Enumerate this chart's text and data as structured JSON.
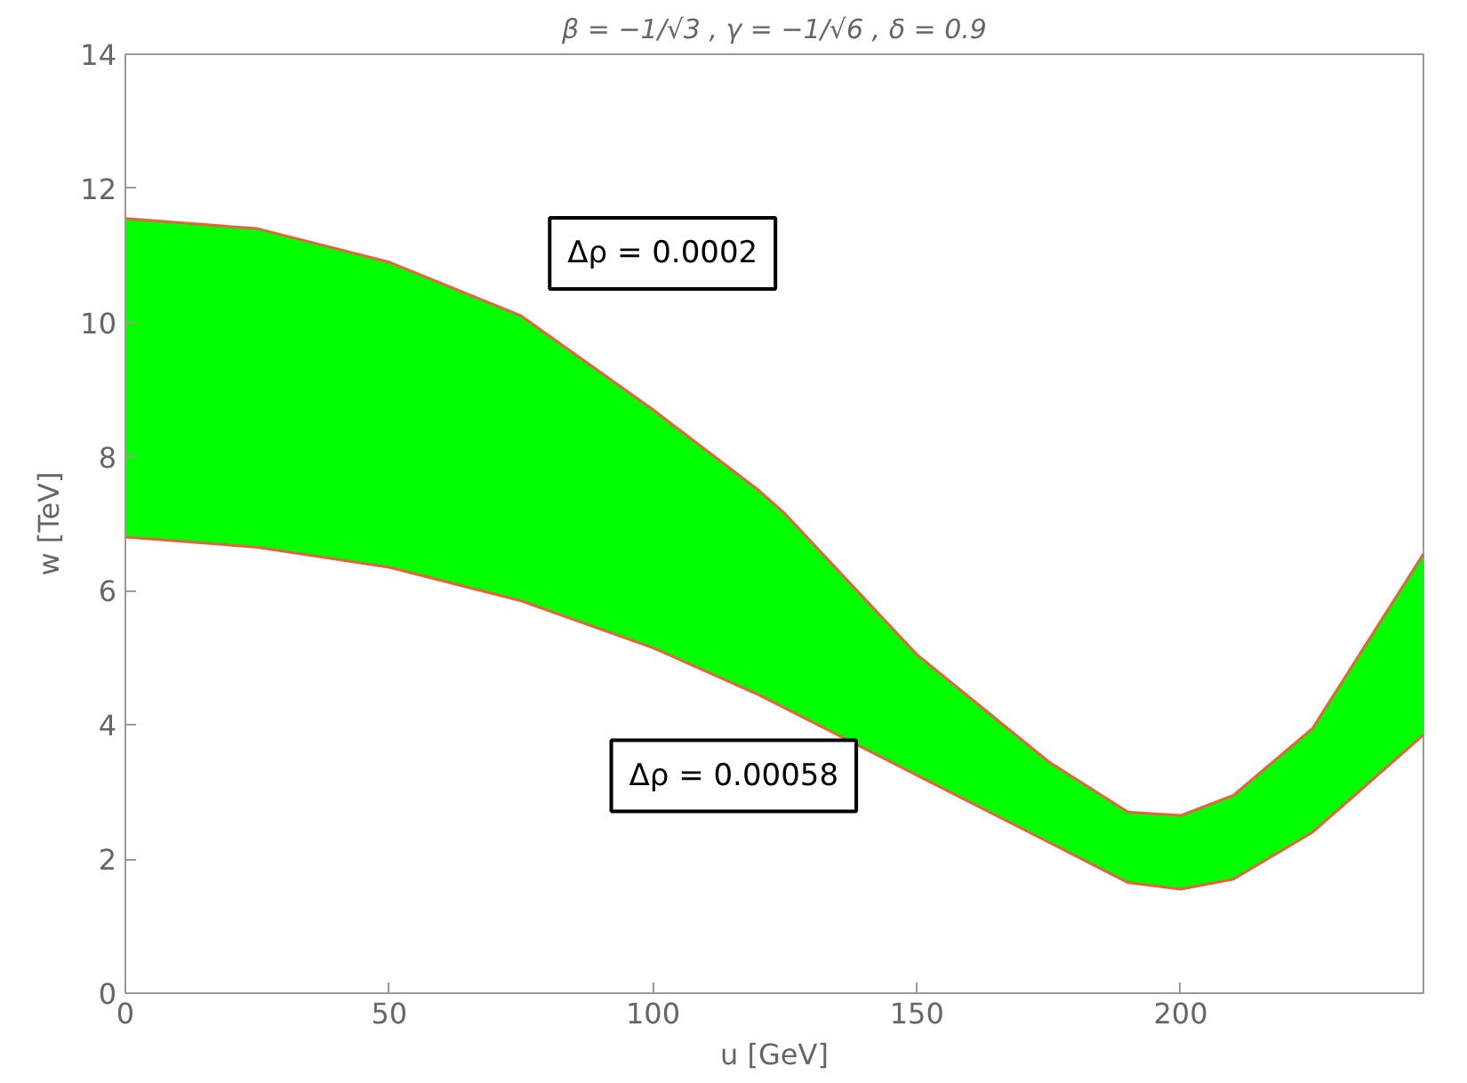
{
  "chart_data": {
    "type": "line",
    "title": "β = −1/√3 , γ = −1/√6 , δ = 0.9",
    "xlabel": "u [GeV]",
    "ylabel": "w [TeV]",
    "x": [
      0,
      25,
      50,
      75,
      100,
      120,
      125,
      150,
      175,
      190,
      200,
      210,
      225,
      246
    ],
    "series": [
      {
        "color": "#e8603c",
        "values": [
          11.55,
          11.4,
          10.9,
          10.1,
          8.7,
          7.5,
          7.15,
          5.05,
          3.45,
          2.7,
          2.65,
          2.95,
          3.95,
          6.55
        ],
        "lower": [
          6.8,
          6.65,
          6.35,
          5.85,
          5.15,
          4.45,
          4.25,
          3.25,
          2.25,
          1.65,
          1.55,
          1.7,
          2.4,
          3.85
        ],
        "upper": [
          11.55,
          11.4,
          10.9,
          10.1,
          8.7,
          7.5,
          7.15,
          5.05,
          3.45,
          2.7,
          2.65,
          2.95,
          3.95,
          6.55
        ]
      },
      {
        "color": "#e8603c",
        "values": [
          6.8,
          6.65,
          6.35,
          5.85,
          5.15,
          4.45,
          4.25,
          3.25,
          2.25,
          1.65,
          1.55,
          1.7,
          2.4,
          3.85
        ]
      }
    ],
    "annotations": [
      "Δρ = 0.0002",
      "Δρ = 0.00058"
    ],
    "xlim": [
      0,
      246
    ],
    "ylim": [
      0,
      14
    ],
    "xticks": [
      0,
      50,
      100,
      150,
      200
    ],
    "yticks": [
      0,
      2,
      4,
      6,
      8,
      10,
      12,
      14
    ],
    "grid": false
  }
}
